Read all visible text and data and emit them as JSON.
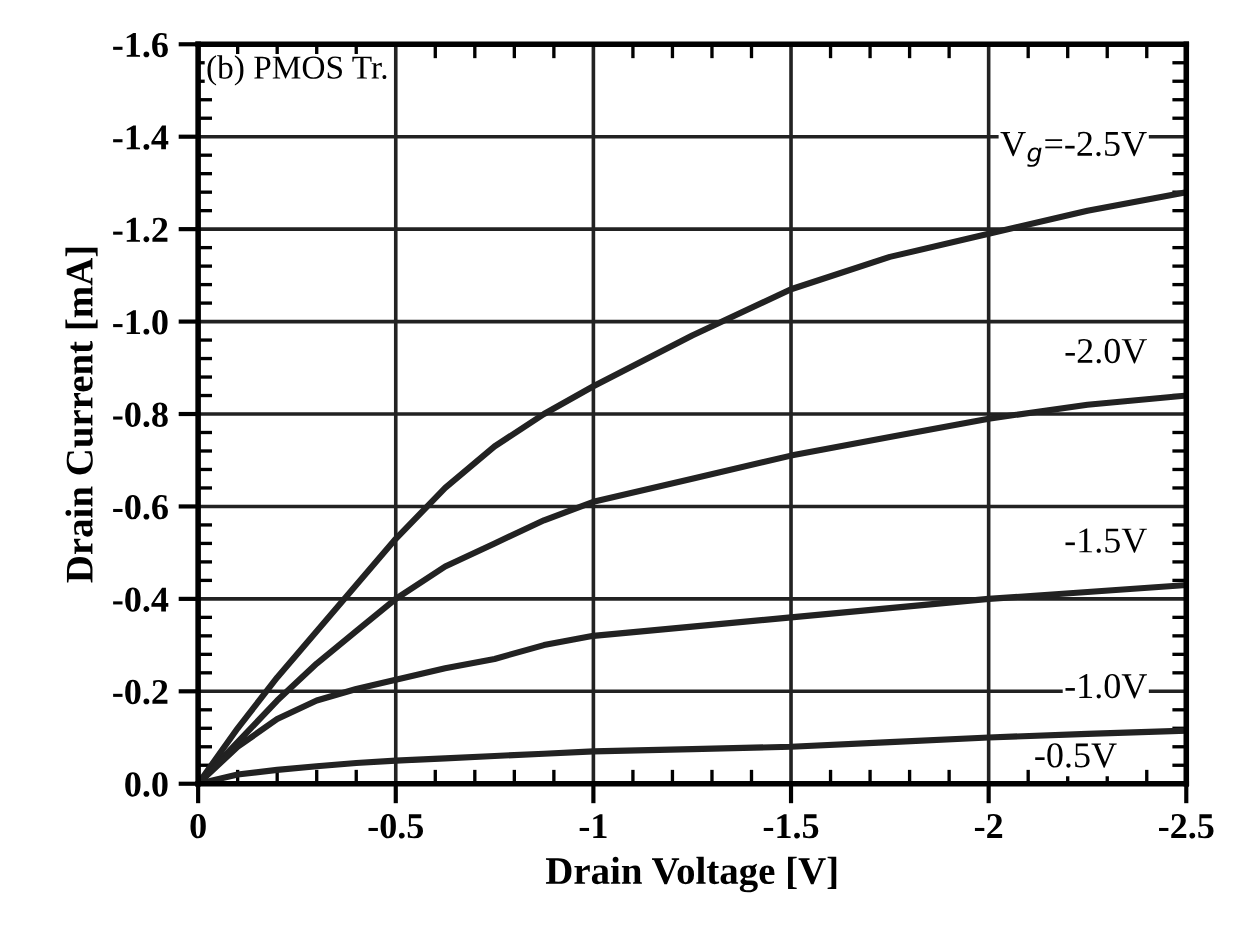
{
  "chart_data": {
    "type": "line",
    "xlabel": "Drain Voltage [V]",
    "ylabel": "Drain Current [mA]",
    "annotations": [
      "(b) PMOS Tr.",
      "-0.5V"
    ],
    "x": [
      0,
      -0.1,
      -0.2,
      -0.3,
      -0.4,
      -0.5,
      -0.625,
      -0.75,
      -0.875,
      -1,
      -1.25,
      -1.5,
      -1.75,
      -2,
      -2.25,
      -2.5
    ],
    "series": [
      {
        "name": "V$_{g}$=-2.5V",
        "color": "#222222",
        "values": [
          0,
          -0.12,
          -0.23,
          -0.33,
          -0.43,
          -0.53,
          -0.64,
          -0.73,
          -0.8,
          -0.86,
          -0.97,
          -1.07,
          -1.14,
          -1.19,
          -1.24,
          -1.28
        ]
      },
      {
        "name": "-2.0V",
        "color": "#222222",
        "values": [
          0,
          -0.09,
          -0.18,
          -0.26,
          -0.33,
          -0.4,
          -0.47,
          -0.52,
          -0.57,
          -0.61,
          -0.66,
          -0.71,
          -0.75,
          -0.79,
          -0.82,
          -0.84
        ]
      },
      {
        "name": "-1.5V",
        "color": "#222222",
        "values": [
          0,
          -0.08,
          -0.14,
          -0.18,
          -0.205,
          -0.225,
          -0.25,
          -0.27,
          -0.3,
          -0.32,
          -0.34,
          -0.36,
          -0.38,
          -0.4,
          -0.415,
          -0.43
        ]
      },
      {
        "name": "-1.0V",
        "color": "#222222",
        "values": [
          0,
          -0.02,
          -0.03,
          -0.038,
          -0.045,
          -0.05,
          -0.055,
          -0.06,
          -0.065,
          -0.07,
          -0.075,
          -0.08,
          -0.09,
          -0.1,
          -0.108,
          -0.115
        ]
      }
    ],
    "xlim": [
      0,
      -2.5
    ],
    "ylim": [
      0,
      -1.6
    ],
    "xticks": [
      0,
      -0.5,
      -1,
      -1.5,
      -2,
      -2.5
    ],
    "yticks": [
      {
        "value": 0,
        "label": "0.0"
      },
      {
        "value": -0.2,
        "label": "-0.2"
      },
      {
        "value": -0.4,
        "label": "-0.4"
      },
      {
        "value": -0.6,
        "label": "-0.6"
      },
      {
        "value": -0.8,
        "label": "-0.8"
      },
      {
        "value": -1.0,
        "label": "-1.0"
      },
      {
        "value": -1.2,
        "label": "-1.2"
      },
      {
        "value": -1.4,
        "label": "-1.4"
      },
      {
        "value": -1.6,
        "label": "-1.6"
      }
    ],
    "grid": true,
    "legend": false,
    "marker": "none",
    "line_style": "solid"
  }
}
